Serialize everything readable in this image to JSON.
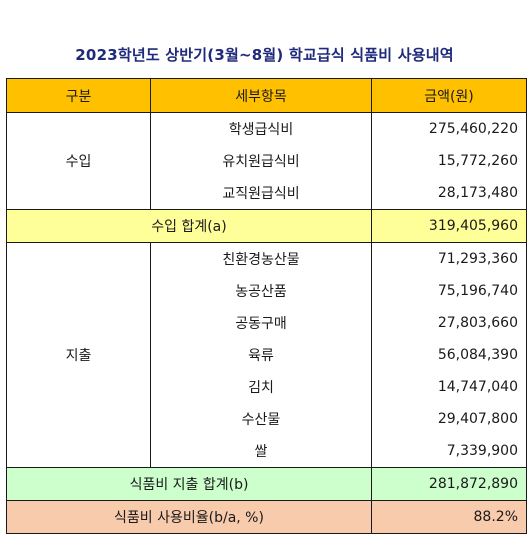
{
  "title": "2023학년도 상반기(3월~8월) 학교급식 식품비 사용내역",
  "headers": [
    "구분",
    "세부항목",
    "금액(원)"
  ],
  "income": {
    "label": "수입",
    "items": [
      {
        "name": "학생급식비",
        "amount": "275,460,220"
      },
      {
        "name": "유치원급식비",
        "amount": "15,772,260"
      },
      {
        "name": "교직원급식비",
        "amount": "28,173,480"
      }
    ],
    "total_label": "수입 합계(a)",
    "total_amount": "319,405,960"
  },
  "expense": {
    "label": "지출",
    "items": [
      {
        "name": "친환경농산물",
        "amount": "71,293,360"
      },
      {
        "name": "농공산품",
        "amount": "75,196,740"
      },
      {
        "name": "공동구매",
        "amount": "27,803,660"
      },
      {
        "name": "육류",
        "amount": "56,084,390"
      },
      {
        "name": "김치",
        "amount": "14,747,040"
      },
      {
        "name": "수산물",
        "amount": "29,407,800"
      },
      {
        "name": "쌀",
        "amount": "7,339,900"
      }
    ],
    "total_label": "식품비 지출 합계(b)",
    "total_amount": "281,872,890"
  },
  "ratio": {
    "label": "식품비 사용비율(b/a, %)",
    "value": "88.2%"
  },
  "colors": {
    "header_bg": "#ffc000",
    "income_total_bg": "#ffff99",
    "expense_total_bg": "#ccffcc",
    "ratio_bg": "#f8cbad",
    "title_color": "#1f2a7a"
  }
}
